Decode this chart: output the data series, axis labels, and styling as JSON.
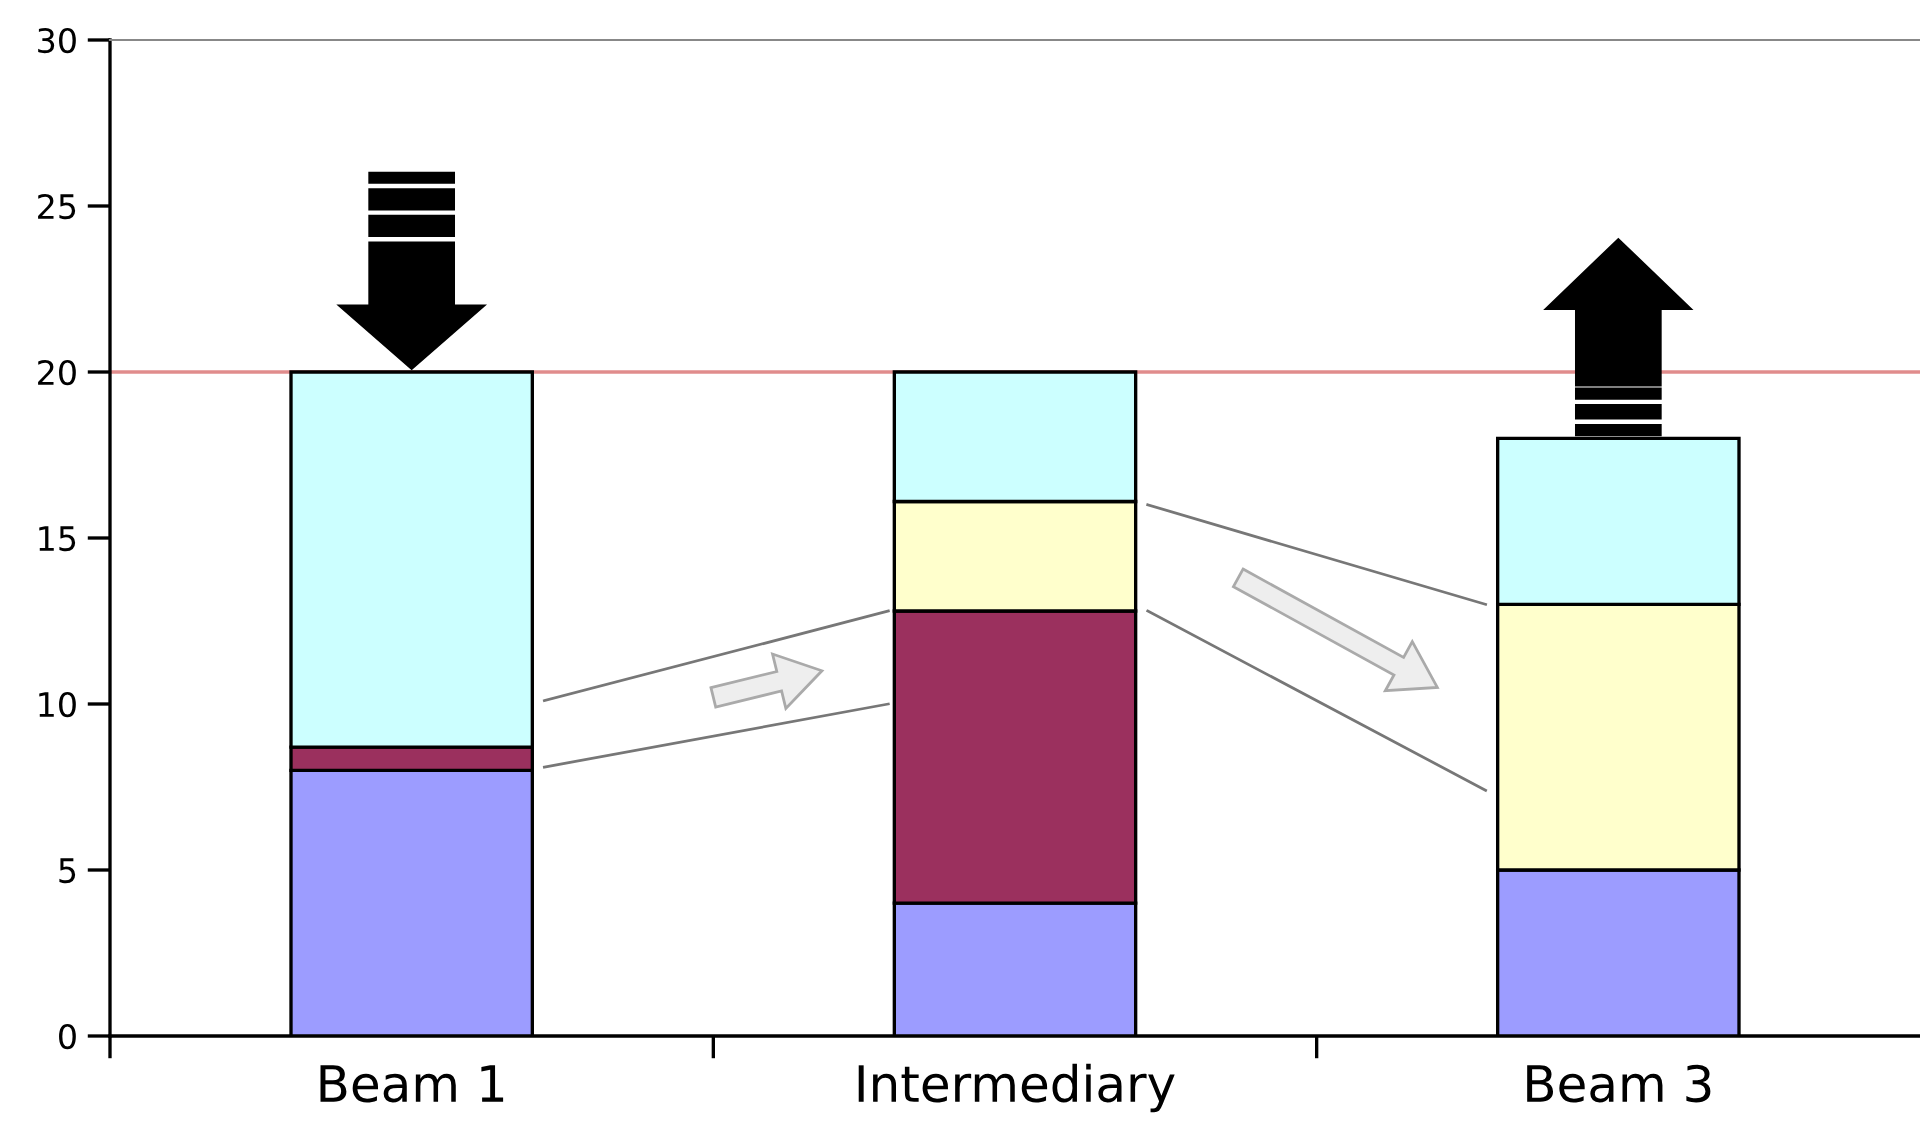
{
  "chart_data": {
    "type": "bar",
    "stacked": true,
    "categories": [
      "Beam 1",
      "Intermediary",
      "Beam 3"
    ],
    "series": [
      {
        "color": "#9c9cff",
        "values": [
          8,
          4,
          5
        ]
      },
      {
        "color": "#9b305e",
        "values": [
          0.7,
          8.8,
          null
        ]
      },
      {
        "color": "#ffffcc",
        "values": [
          null,
          3.3,
          8
        ]
      },
      {
        "color": "#ccffff",
        "values": [
          11.3,
          3.9,
          5
        ]
      }
    ],
    "ylim": [
      0,
      30
    ],
    "yticks": [
      0,
      5,
      10,
      15,
      20,
      25,
      30
    ],
    "ref_lines": [
      {
        "axis": "y",
        "value": 20,
        "color": "#e08c8c"
      }
    ],
    "grid": false,
    "legend": false
  }
}
